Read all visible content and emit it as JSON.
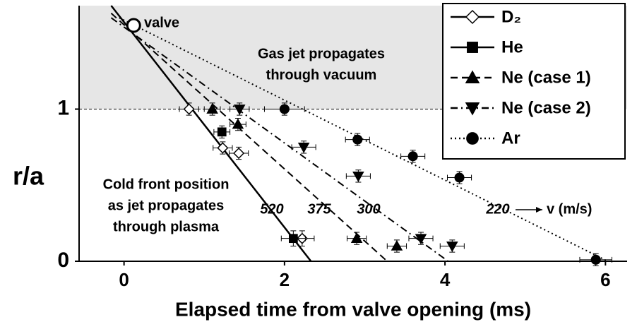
{
  "chart_data": {
    "type": "scatter",
    "x_label": "Elapsed time from valve opening (ms)",
    "y_label": "r/a",
    "xlim": [
      -0.56,
      6.27
    ],
    "ylim": [
      0,
      1.68
    ],
    "xticks": [
      0,
      2,
      4,
      6
    ],
    "yticks": [
      0,
      1
    ],
    "shaded_above": 1,
    "series": [
      {
        "name": "D₂",
        "marker": "diamond-open",
        "dash": "solid",
        "color": "#000000",
        "x": [
          0.81,
          1.23,
          1.43,
          2.22
        ],
        "values": [
          1.0,
          0.745,
          0.71,
          0.15
        ],
        "xerr": [
          0.12,
          0.12,
          0.12,
          0.15
        ],
        "yerr": [
          0.04,
          0.04,
          0.04,
          0.05
        ]
      },
      {
        "name": "He",
        "marker": "square",
        "dash": "solid",
        "color": "#000000",
        "x": [
          1.22,
          2.11
        ],
        "values": [
          0.85,
          0.15
        ],
        "xerr": [
          0.1,
          0.15
        ],
        "yerr": [
          0.04,
          0.05
        ]
      },
      {
        "name": "Ne (case 1)",
        "marker": "triangle-up",
        "dash": "dashed",
        "color": "#000000",
        "x": [
          1.1,
          1.42,
          2.9,
          3.4
        ],
        "values": [
          1.0,
          0.9,
          0.15,
          0.1
        ],
        "xerr": [
          0.1,
          0.1,
          0.12,
          0.12
        ],
        "yerr": [
          0.04,
          0.04,
          0.04,
          0.04
        ]
      },
      {
        "name": "Ne (case 2)",
        "marker": "triangle-down",
        "dash": "dashdot",
        "color": "#000000",
        "x": [
          1.44,
          2.24,
          2.92,
          3.7,
          4.09
        ],
        "values": [
          1.0,
          0.75,
          0.56,
          0.15,
          0.1
        ],
        "xerr": [
          0.12,
          0.15,
          0.15,
          0.15,
          0.15
        ],
        "yerr": [
          0.04,
          0.04,
          0.04,
          0.04,
          0.04
        ]
      },
      {
        "name": "Ar",
        "marker": "circle",
        "dash": "dotted",
        "color": "#000000",
        "x": [
          2.0,
          2.91,
          3.6,
          4.18,
          5.88
        ],
        "values": [
          1.0,
          0.8,
          0.69,
          0.55,
          0.01
        ],
        "xerr": [
          0.25,
          0.15,
          0.15,
          0.15,
          0.2
        ],
        "yerr": [
          0.04,
          0.04,
          0.04,
          0.04,
          0.04
        ]
      }
    ],
    "fits": [
      {
        "dash": "solid",
        "x": [
          -0.16,
          2.33
        ],
        "y": [
          1.68,
          0
        ]
      },
      {
        "dash": "dashed",
        "x": [
          -0.16,
          3.28
        ],
        "y": [
          1.63,
          0
        ]
      },
      {
        "dash": "dashdot",
        "x": [
          -0.16,
          4.04
        ],
        "y": [
          1.6,
          0
        ]
      },
      {
        "dash": "dotted",
        "x": [
          -0.06,
          6.03
        ],
        "y": [
          1.6,
          0
        ]
      }
    ],
    "valve_point": {
      "x": 0.12,
      "y": 1.55,
      "label": "valve"
    },
    "annotations": {
      "vacuum": [
        "Gas jet propagates",
        "through vacuum"
      ],
      "plasma": [
        "Cold front position",
        "as jet propagates",
        "through plasma"
      ],
      "speeds": [
        "520",
        "375",
        "300",
        "220"
      ],
      "speed_unit": "v (m/s)"
    }
  }
}
